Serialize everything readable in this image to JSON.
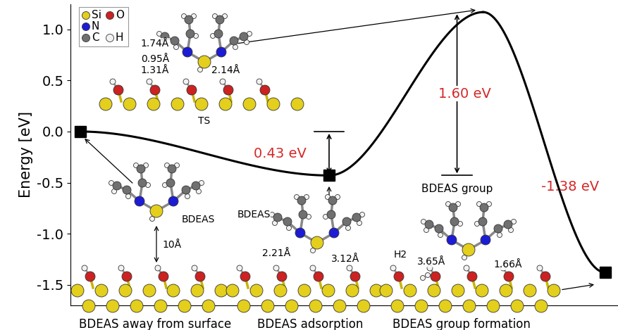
{
  "chart_data": {
    "type": "line",
    "ylabel": "Energy [eV]",
    "x": [
      0,
      1,
      1.62,
      2.11
    ],
    "xlim": [
      -0.04,
      2.16
    ],
    "xticks": [],
    "ylim": [
      -1.7,
      1.25
    ],
    "yticks": [
      {
        "value": -1.5,
        "label": "-1.5"
      },
      {
        "value": -1.0,
        "label": "-1.0"
      },
      {
        "value": -0.5,
        "label": "-0.5"
      },
      {
        "value": 0.0,
        "label": "0.0"
      },
      {
        "value": 0.5,
        "label": "0.5"
      },
      {
        "value": 1.0,
        "label": "1.0"
      }
    ],
    "tick_labels": "y",
    "series": [
      {
        "type": "line",
        "color": "#000000",
        "values": [
          0.0,
          -0.43,
          1.17,
          -1.38
        ]
      },
      {
        "type": "scatter",
        "marker": "square",
        "color": "#000000",
        "values": [
          0.0,
          -0.43,
          null,
          -1.38
        ]
      }
    ],
    "annotations": [
      {
        "text": "0.43 eV",
        "color": "#d62728"
      },
      {
        "text": "1.60 eV",
        "color": "#d62728",
        "label": "BDEAS group"
      },
      {
        "text": "-1.38 eV",
        "color": "#d62728"
      }
    ],
    "atom_key": [
      {
        "label": "Si",
        "color": "#e3cf1c"
      },
      {
        "label": "N",
        "color": "#1c1cd6"
      },
      {
        "label": "C",
        "color": "#707070"
      },
      {
        "label": "O",
        "color": "#cc2222"
      },
      {
        "label": "H",
        "color": "#f2f2f2"
      }
    ],
    "structures": [
      {
        "labels": [
          "BDEAS",
          "10Å"
        ],
        "caption": "BDEAS away from surface"
      },
      {
        "labels": [
          "TS",
          "1.74Å",
          "0.95Å",
          "1.31Å",
          "2.14Å"
        ]
      },
      {
        "labels": [
          "BDEAS",
          "2.21Å",
          "3.12Å"
        ],
        "caption": "BDEAS adsorption"
      },
      {
        "labels": [
          "H2",
          "3.65Å",
          "1.66Å"
        ],
        "caption": "BDEAS group formation"
      }
    ]
  }
}
